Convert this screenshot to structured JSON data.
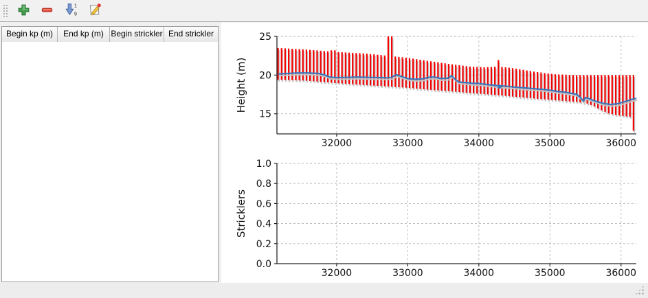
{
  "toolbar": {
    "buttons": [
      {
        "label": "add-row",
        "icon": "plus-icon"
      },
      {
        "label": "remove-row",
        "icon": "minus-icon"
      },
      {
        "label": "sort-numeric",
        "icon": "sort-numeric-icon",
        "digits_top": "1",
        "digits_bottom": "9"
      },
      {
        "label": "edit",
        "icon": "edit-icon"
      }
    ]
  },
  "table": {
    "columns": [
      "Begin kp (m)",
      "End kp (m)",
      "Begin strickler",
      "End strickler"
    ],
    "rows": []
  },
  "colors": {
    "bar_red": "#f40000",
    "line_blue": "#3a76bc",
    "shadow_gray": "#c3c3c3",
    "grid_gray": "#b6b6b6",
    "axis_black": "#262626"
  },
  "chart_data": [
    {
      "type": "line+errorbars",
      "title": "",
      "xlabel": "",
      "ylabel": "Height (m)",
      "xlim": [
        31160,
        36215
      ],
      "ylim": [
        12.4,
        25.0
      ],
      "grid": true,
      "xticks": [
        32000,
        33000,
        34000,
        35000,
        36000
      ],
      "xtick_labels": [
        "32000",
        "33000",
        "34000",
        "35000",
        "36000"
      ],
      "yticks": [
        15,
        20,
        25
      ],
      "ytick_labels": [
        "15",
        "20",
        "25"
      ],
      "bars": {
        "x_start": 31175,
        "x_step": 50,
        "color": "#f40000",
        "shadow_color": "#c3c3c3",
        "top": [
          23.5,
          23.48,
          23.45,
          23.43,
          23.4,
          23.38,
          23.35,
          23.33,
          23.3,
          23.26,
          23.23,
          23.19,
          23.15,
          23.11,
          23.08,
          23.2,
          23.2,
          22.98,
          22.95,
          22.93,
          22.9,
          22.88,
          22.85,
          22.83,
          22.8,
          22.76,
          22.71,
          22.67,
          22.63,
          22.59,
          22.54,
          25.0,
          25.0,
          22.4,
          22.35,
          22.3,
          22.25,
          22.18,
          22.12,
          22.05,
          21.98,
          21.92,
          21.85,
          21.78,
          21.72,
          21.65,
          21.58,
          21.52,
          21.45,
          21.39,
          21.33,
          21.28,
          21.22,
          21.16,
          21.1,
          21.08,
          21.05,
          21.03,
          21.0,
          21.03,
          21.05,
          21.08,
          21.95,
          21.05,
          21.0,
          20.95,
          20.9,
          20.83,
          20.75,
          20.68,
          20.6,
          20.53,
          20.45,
          20.39,
          20.33,
          20.26,
          20.2,
          20.15,
          20.1,
          20.08,
          20.07,
          20.05,
          20.03,
          20.02,
          20.0,
          20.0,
          20.0,
          20.0,
          20.0,
          20.0,
          20.0,
          20.0,
          20.0,
          20.0,
          20.0,
          20.0,
          20.0,
          20.0,
          20.0,
          20.0,
          20.0
        ],
        "bottom": [
          19.4,
          19.38,
          19.37,
          19.35,
          19.34,
          19.32,
          19.3,
          19.29,
          19.27,
          19.23,
          19.2,
          19.16,
          19.12,
          19.08,
          19.05,
          19.01,
          18.97,
          18.94,
          18.91,
          18.88,
          18.85,
          18.81,
          18.78,
          18.75,
          18.72,
          18.69,
          18.66,
          18.63,
          18.61,
          18.58,
          18.55,
          18.52,
          18.49,
          18.46,
          18.43,
          18.4,
          18.37,
          18.33,
          18.29,
          18.24,
          18.2,
          18.16,
          18.12,
          18.09,
          18.05,
          18.02,
          17.99,
          17.95,
          17.92,
          17.88,
          17.84,
          17.8,
          17.76,
          17.71,
          17.67,
          17.64,
          17.6,
          17.57,
          17.54,
          17.5,
          17.47,
          17.43,
          17.39,
          17.35,
          17.31,
          17.26,
          17.22,
          17.18,
          17.14,
          17.1,
          17.05,
          17.01,
          16.97,
          16.93,
          16.9,
          16.86,
          16.82,
          16.78,
          16.74,
          16.71,
          16.67,
          16.63,
          16.59,
          16.56,
          16.52,
          16.45,
          16.39,
          16.32,
          16.14,
          15.95,
          15.7,
          15.45,
          15.25,
          15.05,
          14.95,
          14.85,
          14.78,
          14.72,
          14.66,
          14.6,
          12.8
        ]
      },
      "line": {
        "color": "#3a76bc",
        "x": [
          31175,
          31300,
          31450,
          31600,
          31750,
          31820,
          31900,
          32000,
          32150,
          32300,
          32450,
          32600,
          32700,
          32770,
          32840,
          32900,
          33000,
          33100,
          33200,
          33300,
          33380,
          33470,
          33560,
          33620,
          33680,
          33720,
          33800,
          33900,
          34000,
          34100,
          34200,
          34300,
          34400,
          34500,
          34700,
          34900,
          35000,
          35100,
          35200,
          35300,
          35380,
          35440,
          35470,
          35500,
          35550,
          35650,
          35750,
          35850,
          35950,
          36050,
          36150,
          36215
        ],
        "y": [
          20.15,
          20.2,
          20.28,
          20.28,
          20.2,
          20.05,
          19.75,
          19.68,
          19.7,
          19.75,
          19.7,
          19.68,
          19.65,
          19.7,
          20.05,
          19.85,
          19.55,
          19.45,
          19.5,
          19.72,
          19.75,
          19.55,
          19.6,
          19.9,
          19.35,
          19.1,
          19.05,
          18.95,
          18.9,
          18.8,
          18.7,
          18.6,
          18.55,
          18.45,
          18.3,
          18.15,
          18.05,
          17.9,
          17.8,
          17.65,
          17.5,
          17.0,
          16.65,
          17.1,
          16.95,
          16.6,
          16.35,
          16.2,
          16.3,
          16.55,
          16.85,
          17.0
        ],
        "marker": {
          "x": 34290,
          "y": 18.5
        }
      }
    },
    {
      "type": "empty",
      "title": "",
      "xlabel": "",
      "ylabel": "Stricklers",
      "xlim": [
        31160,
        36215
      ],
      "ylim": [
        0.0,
        1.0
      ],
      "grid": true,
      "xticks": [
        32000,
        33000,
        34000,
        35000,
        36000
      ],
      "xtick_labels": [
        "32000",
        "33000",
        "34000",
        "35000",
        "36000"
      ],
      "yticks": [
        0.0,
        0.2,
        0.4,
        0.6,
        0.8,
        1.0
      ],
      "ytick_labels": [
        "0.0",
        "0.2",
        "0.4",
        "0.6",
        "0.8",
        "1.0"
      ]
    }
  ]
}
